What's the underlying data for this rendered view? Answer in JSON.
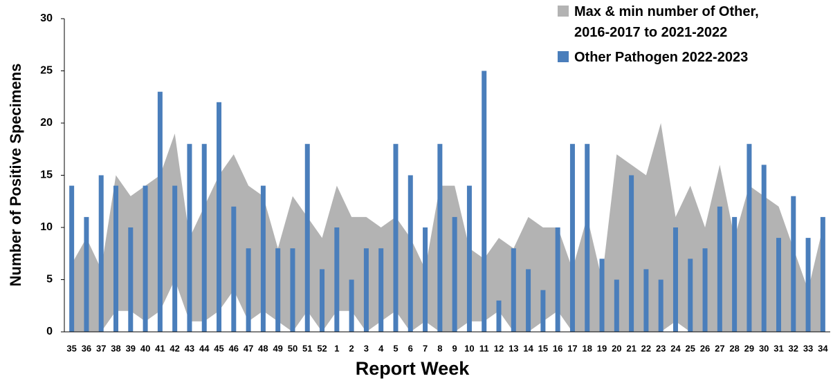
{
  "chart_data": {
    "type": "bar",
    "y_label": "Number of Positive Specimens",
    "x_label": "Report Week",
    "categories": [
      "35",
      "36",
      "37",
      "38",
      "39",
      "40",
      "41",
      "42",
      "43",
      "44",
      "45",
      "46",
      "47",
      "48",
      "49",
      "50",
      "51",
      "52",
      "1",
      "2",
      "3",
      "4",
      "5",
      "6",
      "7",
      "8",
      "9",
      "10",
      "11",
      "12",
      "13",
      "14",
      "15",
      "16",
      "17",
      "18",
      "19",
      "20",
      "21",
      "22",
      "23",
      "24",
      "25",
      "26",
      "27",
      "28",
      "29",
      "30",
      "31",
      "32",
      "33",
      "34"
    ],
    "series": [
      {
        "name": "Max & min number of Other, 2016-2017 to 2021-2022",
        "color": "#b3b3b3",
        "type": "band",
        "max": [
          6.5,
          9,
          6,
          15,
          13,
          14,
          15,
          19,
          9,
          12,
          15,
          17,
          14,
          13,
          8,
          13,
          11,
          9,
          14,
          11,
          11,
          10,
          11,
          9,
          6,
          14,
          14,
          8,
          7,
          9,
          8,
          11,
          10,
          10,
          6,
          11,
          5,
          17,
          16,
          15,
          20,
          11,
          14,
          10,
          16,
          9,
          14,
          13,
          12,
          8,
          4,
          10
        ],
        "min": [
          0,
          0,
          0,
          2,
          2,
          1,
          2,
          5,
          1,
          1,
          2,
          4,
          1,
          2,
          1,
          0,
          2,
          0,
          2,
          2,
          0,
          1,
          2,
          0,
          1,
          0,
          0,
          1,
          1,
          2,
          0,
          0,
          1,
          2,
          0,
          0,
          0,
          0,
          0,
          0,
          0,
          1,
          0,
          0,
          0,
          0,
          0,
          0,
          0,
          0,
          0,
          0
        ]
      },
      {
        "name": "Other Pathogen 2022-2023",
        "color": "#4a7ebb",
        "type": "bar",
        "values": [
          14,
          11,
          15,
          14,
          10,
          14,
          23,
          14,
          18,
          18,
          22,
          12,
          8,
          14,
          8,
          8,
          18,
          6,
          10,
          5,
          8,
          8,
          18,
          15,
          10,
          18,
          11,
          14,
          25,
          3,
          8,
          6,
          4,
          10,
          18,
          18,
          7,
          5,
          15,
          6,
          5,
          10,
          7,
          8,
          12,
          11,
          18,
          16,
          9,
          13,
          9,
          11
        ]
      }
    ],
    "ylim": [
      0,
      30
    ],
    "yticks": [
      0,
      5,
      10,
      15,
      20,
      25,
      30
    ]
  }
}
